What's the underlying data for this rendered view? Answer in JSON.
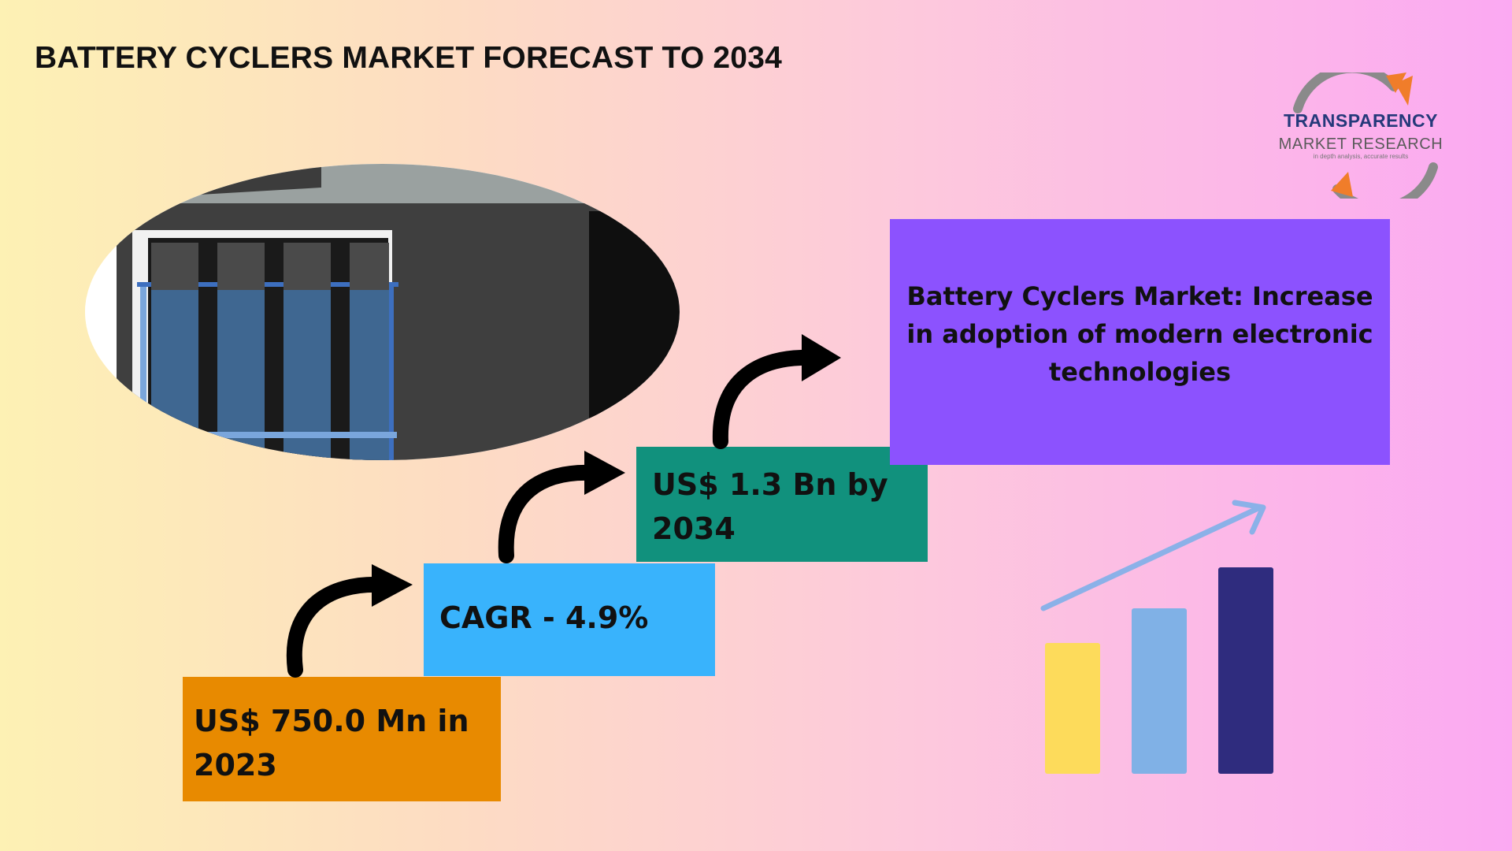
{
  "title": "BATTERY CYCLERS MARKET FORECAST TO 2034",
  "logo": {
    "name": "TRANSPARENCY",
    "subtitle": "MARKET RESEARCH",
    "tagline": "in depth analysis, accurate results"
  },
  "steps": [
    {
      "text": "US$ 750.0 Mn in 2023",
      "color": "#e88a00"
    },
    {
      "text": "CAGR - 4.9%",
      "color": "#39b3fc"
    },
    {
      "text": "US$ 1.3 Bn by 2034",
      "color": "#11917d"
    }
  ],
  "highlight": {
    "text": "Battery Cyclers Market: Increase in adoption of modern electronic technologies",
    "color": "#8c52fe"
  },
  "icons": {
    "photo": "battery-cycler-equipment-photo",
    "step_arrow": "curved-arrow-icon",
    "growth": "growth-bar-chart-icon"
  },
  "colors": {
    "bar_1": "#fddb5b",
    "bar_2": "#80b1e6",
    "bar_3": "#2f2c7e",
    "trend_arrow": "#8bb1e8"
  }
}
